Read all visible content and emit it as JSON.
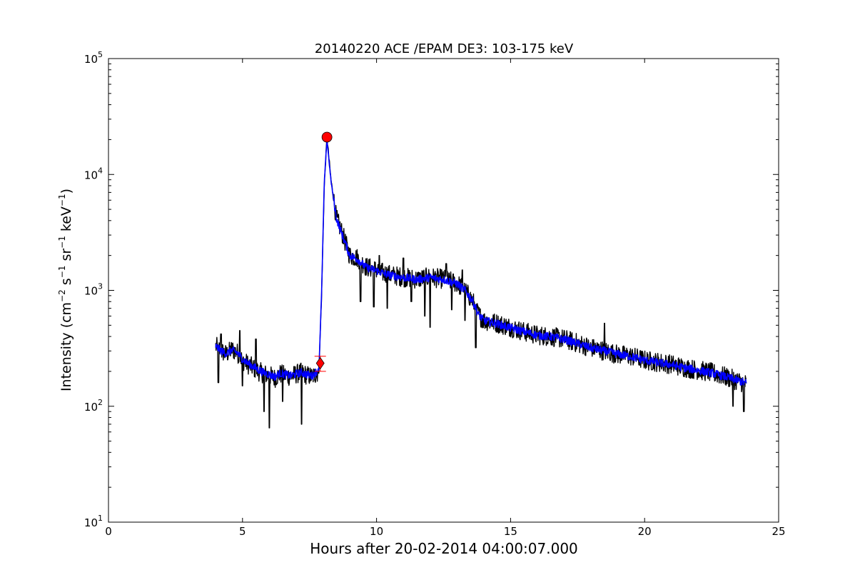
{
  "chart_data": {
    "type": "line",
    "title": "20140220 ACE /EPAM DE3: 103-175 keV",
    "xlabel": "Hours after 20-02-2014 04:00:07.000",
    "ylabel": {
      "text": "Intensity (cm",
      "exp1": "−2",
      "mid1": " s",
      "exp2": "−1",
      "mid2": " sr",
      "exp3": "−1",
      "mid3": " keV",
      "exp4": "−1",
      "end": ")"
    },
    "xlim": [
      0,
      25
    ],
    "ylim": [
      10,
      100000
    ],
    "yscale": "log",
    "grid": false,
    "xticks": [
      {
        "value": 0,
        "label": "0"
      },
      {
        "value": 5,
        "label": "5"
      },
      {
        "value": 10,
        "label": "10"
      },
      {
        "value": 15,
        "label": "15"
      },
      {
        "value": 20,
        "label": "20"
      },
      {
        "value": 25,
        "label": "25"
      }
    ],
    "yticks": [
      {
        "value": 10,
        "base": "10",
        "exp": "1"
      },
      {
        "value": 100,
        "base": "10",
        "exp": "2"
      },
      {
        "value": 1000,
        "base": "10",
        "exp": "3"
      },
      {
        "value": 10000,
        "base": "10",
        "exp": "4"
      },
      {
        "value": 100000,
        "base": "10",
        "exp": "5"
      }
    ],
    "series": [
      {
        "color": "#000000",
        "style": "raw",
        "x": [
          4.0,
          4.2,
          4.4,
          4.6,
          4.8,
          5.0,
          5.2,
          5.4,
          5.6,
          5.8,
          6.0,
          6.2,
          6.4,
          6.6,
          6.8,
          7.0,
          7.2,
          7.4,
          7.6,
          7.85,
          7.95,
          8.05,
          8.15,
          8.3,
          8.5,
          8.7,
          9.0,
          9.3,
          9.6,
          10.0,
          10.3,
          10.6,
          11.0,
          11.5,
          12.0,
          12.5,
          13.0,
          13.3,
          13.6,
          13.8,
          14.0,
          14.5,
          15.0,
          15.5,
          16.0,
          16.5,
          17.0,
          17.5,
          18.0,
          18.5,
          19.0,
          19.5,
          20.0,
          20.5,
          21.0,
          21.5,
          22.0,
          22.5,
          23.0,
          23.5,
          23.8
        ],
        "y": [
          330,
          300,
          280,
          310,
          290,
          250,
          230,
          215,
          200,
          190,
          185,
          175,
          190,
          185,
          180,
          190,
          195,
          185,
          180,
          200,
          900,
          8000,
          21000,
          9000,
          4200,
          3200,
          2000,
          1900,
          1600,
          1500,
          1400,
          1350,
          1300,
          1250,
          1300,
          1250,
          1150,
          1000,
          800,
          620,
          550,
          520,
          480,
          440,
          410,
          400,
          380,
          350,
          320,
          300,
          280,
          270,
          250,
          240,
          230,
          215,
          205,
          195,
          180,
          165,
          155
        ],
        "dips": [
          {
            "x": 4.1,
            "y": 160
          },
          {
            "x": 5.0,
            "y": 150
          },
          {
            "x": 5.8,
            "y": 90
          },
          {
            "x": 6.0,
            "y": 65
          },
          {
            "x": 6.5,
            "y": 110
          },
          {
            "x": 7.2,
            "y": 70
          },
          {
            "x": 9.4,
            "y": 800
          },
          {
            "x": 9.9,
            "y": 720
          },
          {
            "x": 10.4,
            "y": 700
          },
          {
            "x": 11.3,
            "y": 800
          },
          {
            "x": 11.8,
            "y": 600
          },
          {
            "x": 12.0,
            "y": 480
          },
          {
            "x": 12.8,
            "y": 680
          },
          {
            "x": 13.3,
            "y": 550
          },
          {
            "x": 13.7,
            "y": 320
          },
          {
            "x": 18.5,
            "y": 170
          },
          {
            "x": 23.3,
            "y": 100
          },
          {
            "x": 23.7,
            "y": 90
          }
        ],
        "peaks": [
          {
            "x": 4.2,
            "y": 420
          },
          {
            "x": 4.9,
            "y": 450
          },
          {
            "x": 5.5,
            "y": 380
          },
          {
            "x": 10.1,
            "y": 2000
          },
          {
            "x": 11.0,
            "y": 1900
          },
          {
            "x": 12.6,
            "y": 1700
          },
          {
            "x": 13.2,
            "y": 1500
          },
          {
            "x": 18.5,
            "y": 520
          }
        ]
      },
      {
        "color": "#0000ff",
        "style": "smoothed",
        "x": [
          4.0,
          4.2,
          4.4,
          4.6,
          4.8,
          5.0,
          5.2,
          5.4,
          5.6,
          5.8,
          6.0,
          6.2,
          6.4,
          6.6,
          6.8,
          7.0,
          7.2,
          7.4,
          7.6,
          7.85,
          7.95,
          8.05,
          8.15,
          8.3,
          8.5,
          8.7,
          9.0,
          9.3,
          9.6,
          10.0,
          10.3,
          10.6,
          11.0,
          11.5,
          12.0,
          12.5,
          13.0,
          13.3,
          13.6,
          13.8,
          14.0,
          14.5,
          15.0,
          15.5,
          16.0,
          16.5,
          17.0,
          17.5,
          18.0,
          18.5,
          19.0,
          19.5,
          20.0,
          20.5,
          21.0,
          21.5,
          22.0,
          22.5,
          23.0,
          23.5,
          23.8
        ],
        "y": [
          330,
          300,
          285,
          305,
          290,
          255,
          235,
          220,
          205,
          195,
          188,
          180,
          192,
          188,
          183,
          190,
          196,
          188,
          183,
          210,
          950,
          8500,
          20000,
          8800,
          4200,
          3100,
          2000,
          1850,
          1580,
          1480,
          1390,
          1340,
          1290,
          1240,
          1290,
          1240,
          1140,
          1000,
          800,
          620,
          550,
          515,
          475,
          440,
          410,
          398,
          378,
          348,
          318,
          300,
          282,
          268,
          250,
          238,
          228,
          214,
          204,
          194,
          180,
          166,
          158
        ]
      }
    ],
    "markers": [
      {
        "shape": "circle",
        "x": 8.15,
        "y": 21000,
        "color": "#ff0000"
      },
      {
        "shape": "diamond",
        "x": 7.9,
        "y": 235,
        "color": "#ff0000",
        "error_low": 200,
        "error_high": 270
      }
    ]
  }
}
